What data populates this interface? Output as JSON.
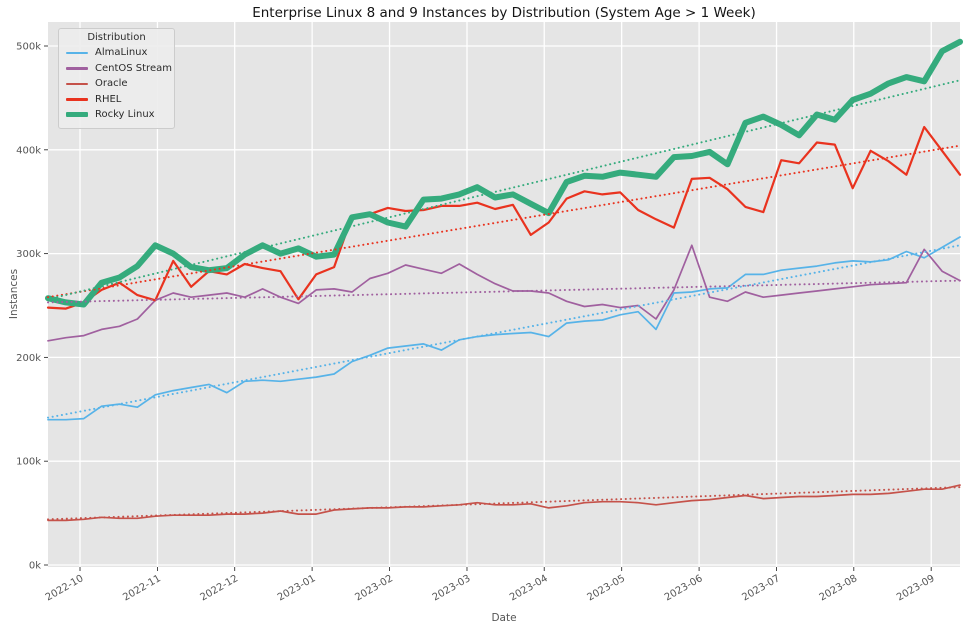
{
  "chart_data": {
    "type": "line",
    "title": "Enterprise Linux 8 and 9 Instances by Distribution (System Age > 1 Week)",
    "xlabel": "Date",
    "ylabel": "Instances",
    "legend_title": "Distribution",
    "legend_position": "upper-left",
    "grid": true,
    "unit": "thousands of instances (k)",
    "x_resolution": "weekly",
    "weeks": 52,
    "ylim_k": [
      0,
      523
    ],
    "y_ticks": {
      "values_k": [
        0,
        100,
        200,
        300,
        400,
        500
      ],
      "labels": [
        "0k",
        "100k",
        "200k",
        "300k",
        "400k",
        "500k"
      ]
    },
    "x_ticks": {
      "labels": [
        "2022-10",
        "2022-11",
        "2022-12",
        "2023-01",
        "2023-02",
        "2023-03",
        "2023-04",
        "2023-05",
        "2023-06",
        "2023-07",
        "2023-08",
        "2023-09"
      ],
      "week_positions": [
        1.79,
        6.12,
        10.44,
        14.77,
        19.1,
        23.43,
        27.75,
        32.08,
        36.41,
        40.74,
        45.06,
        49.39
      ]
    },
    "colors": {
      "plot_background": "#e5e5e5",
      "grid": "#ffffff",
      "tick_text": "#555555",
      "title_text": "#141414"
    },
    "series": [
      {
        "name": "AlmaLinux",
        "color": "#57b3e8",
        "line_width": 1.7,
        "trend_endpoints_k": [
          142,
          308
        ],
        "values_k": [
          140,
          140,
          141,
          153,
          155,
          152,
          164,
          168,
          171,
          174,
          166,
          177,
          178,
          177,
          179,
          181,
          184,
          196,
          202,
          209,
          211,
          213,
          207,
          217,
          220,
          222,
          223,
          224,
          220,
          233,
          235,
          236,
          241,
          244,
          227,
          262,
          263,
          266,
          267,
          280,
          280,
          284,
          286,
          288,
          291,
          293,
          292,
          294,
          302,
          296,
          306,
          316
        ]
      },
      {
        "name": "CentOS Stream",
        "color": "#a0609f",
        "line_width": 1.7,
        "trend_endpoints_k": [
          253,
          274
        ],
        "values_k": [
          216,
          219,
          221,
          227,
          230,
          237,
          255,
          262,
          258,
          260,
          262,
          258,
          266,
          258,
          252,
          265,
          266,
          263,
          276,
          281,
          289,
          285,
          281,
          290,
          280,
          271,
          264,
          264,
          262,
          254,
          249,
          251,
          248,
          250,
          237,
          265,
          308,
          258,
          254,
          263,
          258,
          260,
          262,
          264,
          266,
          268,
          270,
          271,
          272,
          304,
          283,
          274
        ]
      },
      {
        "name": "Oracle",
        "color": "#c5524a",
        "line_width": 1.7,
        "trend_endpoints_k": [
          44,
          75
        ],
        "values_k": [
          43,
          43,
          44,
          46,
          45,
          45,
          47,
          48,
          48,
          48,
          49,
          49,
          50,
          52,
          49,
          49,
          53,
          54,
          55,
          55,
          56,
          56,
          57,
          58,
          60,
          58,
          58,
          59,
          55,
          57,
          60,
          61,
          61,
          60,
          58,
          60,
          62,
          63,
          65,
          67,
          64,
          65,
          66,
          66,
          67,
          68,
          68,
          69,
          71,
          73,
          73,
          77
        ]
      },
      {
        "name": "RHEL",
        "color": "#e9331f",
        "line_width": 2.2,
        "trend_endpoints_k": [
          258,
          404
        ],
        "values_k": [
          248,
          247,
          253,
          265,
          272,
          260,
          255,
          293,
          268,
          283,
          280,
          290,
          286,
          283,
          256,
          280,
          287,
          336,
          338,
          344,
          341,
          342,
          346,
          346,
          349,
          343,
          347,
          318,
          330,
          353,
          360,
          357,
          359,
          342,
          333,
          325,
          372,
          373,
          362,
          345,
          340,
          390,
          387,
          407,
          405,
          363,
          399,
          389,
          376,
          422,
          399,
          376
        ]
      },
      {
        "name": "Rocky Linux",
        "color": "#35ab7d",
        "line_width": 6,
        "trend_endpoints_k": [
          256,
          467
        ],
        "values_k": [
          257,
          253,
          251,
          272,
          277,
          288,
          308,
          300,
          287,
          284,
          286,
          299,
          308,
          300,
          305,
          297,
          299,
          335,
          338,
          330,
          326,
          352,
          353,
          357,
          364,
          354,
          357,
          348,
          339,
          369,
          375,
          374,
          378,
          376,
          374,
          393,
          394,
          398,
          386,
          426,
          432,
          424,
          414,
          434,
          429,
          448,
          454,
          464,
          470,
          466,
          495,
          504
        ]
      }
    ]
  }
}
